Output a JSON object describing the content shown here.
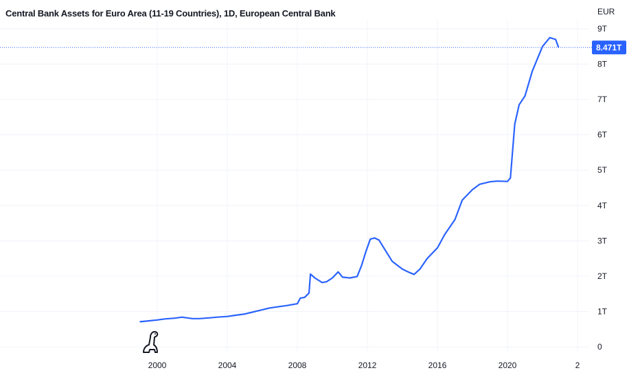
{
  "chart_data": {
    "type": "line",
    "title": "Central Bank Assets for Euro Area (11-19 Countries), 1D, European Central Bank",
    "currency_label": "EUR",
    "x_tick_labels": [
      "2000",
      "2004",
      "2008",
      "2012",
      "2016",
      "2020",
      "2"
    ],
    "y_tick_labels": [
      "0",
      "1T",
      "2T",
      "3T",
      "4T",
      "5T",
      "6T",
      "7T",
      "8T",
      "9T"
    ],
    "ylim": [
      0,
      9
    ],
    "last_value_label": "8.471T",
    "last_value": 8.471,
    "grid": true,
    "line_color": "#2962ff",
    "series": [
      {
        "values_in_trillions": true,
        "x": [
          "1999-01",
          "1999-06",
          "2000-01",
          "2000-06",
          "2001-01",
          "2001-06",
          "2002-01",
          "2002-06",
          "2003-01",
          "2003-06",
          "2004-01",
          "2004-06",
          "2005-01",
          "2005-06",
          "2006-01",
          "2006-06",
          "2007-01",
          "2007-06",
          "2008-01",
          "2008-03",
          "2008-06",
          "2008-09",
          "2008-10",
          "2009-01",
          "2009-06",
          "2009-09",
          "2010-01",
          "2010-05",
          "2010-08",
          "2011-01",
          "2011-06",
          "2011-09",
          "2011-12",
          "2012-03",
          "2012-06",
          "2012-09",
          "2013-01",
          "2013-06",
          "2014-01",
          "2014-06",
          "2014-09",
          "2015-01",
          "2015-06",
          "2016-01",
          "2016-06",
          "2017-01",
          "2017-06",
          "2018-01",
          "2018-06",
          "2019-01",
          "2019-06",
          "2020-01",
          "2020-03",
          "2020-06",
          "2020-09",
          "2021-01",
          "2021-06",
          "2022-01",
          "2022-06",
          "2022-10",
          "2022-12"
        ],
        "y": [
          0.71,
          0.73,
          0.76,
          0.79,
          0.81,
          0.84,
          0.8,
          0.8,
          0.82,
          0.84,
          0.86,
          0.89,
          0.93,
          0.98,
          1.05,
          1.1,
          1.14,
          1.17,
          1.22,
          1.38,
          1.4,
          1.52,
          2.06,
          1.95,
          1.82,
          1.84,
          1.95,
          2.12,
          1.97,
          1.95,
          1.99,
          2.3,
          2.7,
          3.05,
          3.08,
          3.02,
          2.75,
          2.42,
          2.2,
          2.1,
          2.05,
          2.2,
          2.5,
          2.8,
          3.18,
          3.6,
          4.15,
          4.45,
          4.6,
          4.67,
          4.69,
          4.68,
          4.78,
          6.3,
          6.85,
          7.1,
          7.8,
          8.5,
          8.75,
          8.7,
          8.47
        ]
      }
    ]
  }
}
